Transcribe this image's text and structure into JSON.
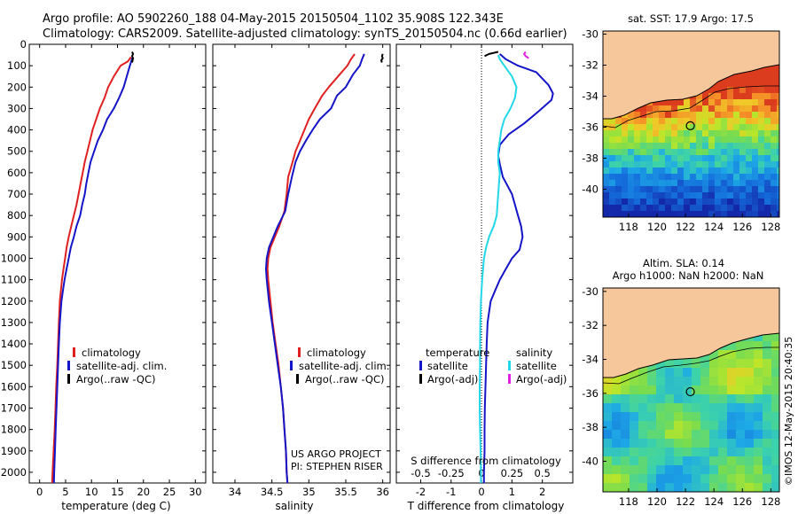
{
  "header": {
    "line1": "Argo profile: AO 5902260_188 04-May-2015 20150504_1102 35.908S 122.343E",
    "line2": "Climatology: CARS2009. Satellite-adjusted climatology: synTS_20150504.nc (0.66d earlier)"
  },
  "side_text": "©IMOS 12-May-2015 20:40:35",
  "colors": {
    "red": "#e02020",
    "blue": "#1414c8",
    "black": "#000000",
    "cyan": "#22d8e8",
    "magenta": "#e020e0",
    "land": "#f7c79c"
  },
  "chart_data": [
    {
      "id": "temperature",
      "type": "line",
      "xlabel": "temperature (deg C)",
      "xlim": [
        -2,
        32
      ],
      "xticks": [
        0,
        5,
        10,
        15,
        20,
        25,
        30
      ],
      "ylim": [
        0,
        2050
      ],
      "yticks": [
        0,
        100,
        200,
        300,
        400,
        500,
        600,
        700,
        800,
        900,
        1000,
        1100,
        1200,
        1300,
        1400,
        1500,
        1600,
        1700,
        1800,
        1900,
        2000
      ],
      "legend": [
        "climatology",
        "satellite-adj. clim.",
        "Argo(..raw -QC)"
      ],
      "series": [
        {
          "name": "climatology",
          "color": "#e02020",
          "points": [
            [
              17.6,
              60
            ],
            [
              17.0,
              80
            ],
            [
              15.6,
              100
            ],
            [
              14.3,
              150
            ],
            [
              13.2,
              200
            ],
            [
              12.5,
              250
            ],
            [
              11.6,
              300
            ],
            [
              10.9,
              350
            ],
            [
              10.2,
              400
            ],
            [
              9.7,
              450
            ],
            [
              9.2,
              500
            ],
            [
              8.7,
              550
            ],
            [
              8.3,
              600
            ],
            [
              7.9,
              650
            ],
            [
              7.5,
              700
            ],
            [
              7.1,
              750
            ],
            [
              6.6,
              800
            ],
            [
              6.1,
              850
            ],
            [
              5.6,
              900
            ],
            [
              5.2,
              950
            ],
            [
              4.9,
              1000
            ],
            [
              4.6,
              1050
            ],
            [
              4.3,
              1100
            ],
            [
              4.1,
              1150
            ],
            [
              3.9,
              1200
            ],
            [
              3.7,
              1300
            ],
            [
              3.55,
              1400
            ],
            [
              3.4,
              1500
            ],
            [
              3.2,
              1600
            ],
            [
              3.05,
              1700
            ],
            [
              2.9,
              1800
            ],
            [
              2.7,
              1900
            ],
            [
              2.5,
              2000
            ],
            [
              2.4,
              2050
            ]
          ]
        },
        {
          "name": "satellite-adj. clim.",
          "color": "#1414c8",
          "points": [
            [
              17.9,
              60
            ],
            [
              17.4,
              100
            ],
            [
              16.8,
              150
            ],
            [
              16.2,
              200
            ],
            [
              15.3,
              250
            ],
            [
              14.3,
              300
            ],
            [
              13.0,
              350
            ],
            [
              12.2,
              400
            ],
            [
              11.2,
              450
            ],
            [
              10.5,
              500
            ],
            [
              9.8,
              550
            ],
            [
              9.4,
              600
            ],
            [
              9.0,
              650
            ],
            [
              8.7,
              700
            ],
            [
              8.2,
              750
            ],
            [
              7.8,
              800
            ],
            [
              7.1,
              850
            ],
            [
              6.6,
              900
            ],
            [
              6.0,
              950
            ],
            [
              5.6,
              1000
            ],
            [
              5.2,
              1050
            ],
            [
              4.8,
              1100
            ],
            [
              4.5,
              1150
            ],
            [
              4.2,
              1200
            ],
            [
              3.9,
              1300
            ],
            [
              3.7,
              1400
            ],
            [
              3.55,
              1500
            ],
            [
              3.4,
              1600
            ],
            [
              3.25,
              1700
            ],
            [
              3.1,
              1800
            ],
            [
              2.95,
              1900
            ],
            [
              2.8,
              2000
            ],
            [
              2.75,
              2050
            ]
          ]
        },
        {
          "name": "Argo(..raw -QC)",
          "color": "#000000",
          "points": [
            [
              17.8,
              35
            ],
            [
              18.0,
              45
            ],
            [
              17.8,
              55
            ],
            [
              18.0,
              65
            ],
            [
              17.9,
              75
            ],
            [
              17.8,
              85
            ]
          ]
        }
      ]
    },
    {
      "id": "salinity",
      "type": "line",
      "xlabel": "salinity",
      "xlim": [
        33.7,
        36.1
      ],
      "xticks": [
        34,
        34.5,
        35,
        35.5,
        36
      ],
      "ylim": [
        0,
        2050
      ],
      "legend": [
        "climatology",
        "satellite-adj. clim.",
        "Argo(..raw -QC)"
      ],
      "annotation": [
        "US ARGO PROJECT",
        "PI: STEPHEN RISER"
      ],
      "series": [
        {
          "name": "climatology",
          "color": "#e02020",
          "points": [
            [
              35.62,
              45
            ],
            [
              35.57,
              70
            ],
            [
              35.52,
              100
            ],
            [
              35.42,
              140
            ],
            [
              35.27,
              200
            ],
            [
              35.18,
              240
            ],
            [
              35.08,
              300
            ],
            [
              35.0,
              350
            ],
            [
              34.94,
              400
            ],
            [
              34.88,
              450
            ],
            [
              34.82,
              500
            ],
            [
              34.78,
              550
            ],
            [
              34.72,
              620
            ],
            [
              34.7,
              700
            ],
            [
              34.67,
              780
            ],
            [
              34.6,
              850
            ],
            [
              34.54,
              900
            ],
            [
              34.48,
              950
            ],
            [
              34.45,
              1000
            ],
            [
              34.44,
              1050
            ],
            [
              34.45,
              1100
            ],
            [
              34.48,
              1200
            ],
            [
              34.51,
              1300
            ],
            [
              34.55,
              1400
            ],
            [
              34.59,
              1500
            ],
            [
              34.62,
              1600
            ],
            [
              34.65,
              1700
            ],
            [
              34.67,
              1800
            ],
            [
              34.69,
              1900
            ],
            [
              34.7,
              2000
            ],
            [
              34.71,
              2050
            ]
          ]
        },
        {
          "name": "satellite-adj. clim.",
          "color": "#1414c8",
          "points": [
            [
              35.75,
              45
            ],
            [
              35.72,
              70
            ],
            [
              35.69,
              100
            ],
            [
              35.6,
              140
            ],
            [
              35.5,
              200
            ],
            [
              35.38,
              240
            ],
            [
              35.3,
              300
            ],
            [
              35.15,
              350
            ],
            [
              35.05,
              400
            ],
            [
              34.96,
              450
            ],
            [
              34.88,
              500
            ],
            [
              34.82,
              550
            ],
            [
              34.77,
              620
            ],
            [
              34.72,
              700
            ],
            [
              34.68,
              780
            ],
            [
              34.58,
              850
            ],
            [
              34.52,
              900
            ],
            [
              34.46,
              950
            ],
            [
              34.43,
              1000
            ],
            [
              34.42,
              1050
            ],
            [
              34.43,
              1100
            ],
            [
              34.46,
              1200
            ],
            [
              34.5,
              1300
            ],
            [
              34.54,
              1400
            ],
            [
              34.58,
              1500
            ],
            [
              34.62,
              1600
            ],
            [
              34.65,
              1700
            ],
            [
              34.67,
              1800
            ],
            [
              34.69,
              1900
            ],
            [
              34.7,
              2000
            ],
            [
              34.71,
              2050
            ]
          ]
        },
        {
          "name": "Argo(..raw -QC)",
          "color": "#000000",
          "points": [
            [
              36.0,
              45
            ],
            [
              35.99,
              55
            ],
            [
              36.0,
              65
            ],
            [
              35.98,
              75
            ],
            [
              35.99,
              85
            ]
          ]
        }
      ]
    },
    {
      "id": "difference",
      "type": "line",
      "xlabel": "T difference from climatology",
      "xlim": [
        -2.8,
        3.0
      ],
      "xticks": [
        -2,
        -1,
        0,
        1,
        2
      ],
      "top_xlabel": "S difference from climatology",
      "top_xticks": [
        -0.5,
        -0.25,
        0,
        0.25,
        0.5
      ],
      "ylim": [
        0,
        2050
      ],
      "legend_temperature_title": "temperature",
      "legend_salinity_title": "salinity",
      "legend": [
        "satellite",
        "Argo(-adj)",
        "satellite",
        "Argo(-adj)"
      ],
      "series": [
        {
          "name": "satellite",
          "color": "#1414c8",
          "points": [
            [
              0.6,
              45
            ],
            [
              0.8,
              70
            ],
            [
              1.2,
              100
            ],
            [
              1.8,
              130
            ],
            [
              2.2,
              190
            ],
            [
              2.35,
              230
            ],
            [
              2.3,
              260
            ],
            [
              1.9,
              310
            ],
            [
              1.4,
              370
            ],
            [
              0.9,
              420
            ],
            [
              0.6,
              470
            ],
            [
              0.55,
              520
            ],
            [
              0.6,
              560
            ],
            [
              0.7,
              620
            ],
            [
              1.0,
              700
            ],
            [
              1.2,
              800
            ],
            [
              1.3,
              850
            ],
            [
              1.35,
              900
            ],
            [
              1.25,
              960
            ],
            [
              1.0,
              1000
            ],
            [
              0.8,
              1050
            ],
            [
              0.6,
              1100
            ],
            [
              0.45,
              1150
            ],
            [
              0.3,
              1200
            ],
            [
              0.2,
              1300
            ],
            [
              0.17,
              1400
            ],
            [
              0.15,
              1500
            ],
            [
              0.13,
              1600
            ],
            [
              0.11,
              1700
            ],
            [
              0.1,
              1800
            ],
            [
              0.1,
              1900
            ],
            [
              0.08,
              2000
            ],
            [
              0.08,
              2050
            ]
          ]
        },
        {
          "name": "Argo(-adj)",
          "color": "#000000",
          "points": [
            [
              0.1,
              55
            ],
            [
              0.25,
              45
            ],
            [
              0.4,
              40
            ],
            [
              0.55,
              35
            ]
          ]
        },
        {
          "name": "satellite",
          "color": "#22d8e8",
          "points": [
            [
              0.55,
              50
            ],
            [
              0.6,
              70
            ],
            [
              0.8,
              110
            ],
            [
              1.0,
              150
            ],
            [
              1.15,
              200
            ],
            [
              1.1,
              250
            ],
            [
              0.95,
              300
            ],
            [
              0.75,
              350
            ],
            [
              0.65,
              400
            ],
            [
              0.6,
              450
            ],
            [
              0.55,
              500
            ],
            [
              0.55,
              550
            ],
            [
              0.6,
              600
            ],
            [
              0.55,
              700
            ],
            [
              0.5,
              800
            ],
            [
              0.4,
              850
            ],
            [
              0.25,
              900
            ],
            [
              0.15,
              950
            ],
            [
              0.08,
              1000
            ],
            [
              0.02,
              1100
            ],
            [
              0.0,
              1150
            ],
            [
              -0.02,
              1200
            ],
            [
              -0.04,
              1300
            ],
            [
              -0.05,
              1400
            ],
            [
              -0.05,
              1500
            ],
            [
              -0.06,
              1600
            ],
            [
              -0.06,
              1700
            ],
            [
              -0.05,
              1800
            ],
            [
              -0.03,
              1900
            ],
            [
              -0.02,
              2000
            ],
            [
              -0.02,
              2050
            ]
          ]
        },
        {
          "name": "Argo(-adj)",
          "color": "#e020e0",
          "points": [
            [
              1.55,
              65
            ],
            [
              1.45,
              55
            ],
            [
              1.4,
              45
            ],
            [
              1.45,
              35
            ]
          ]
        }
      ]
    },
    {
      "id": "sst_map",
      "type": "heatmap",
      "title": "sat. SST: 17.9 Argo: 17.5",
      "xlim": [
        116.2,
        128.6
      ],
      "xticks": [
        118,
        120,
        122,
        124,
        126,
        128
      ],
      "ylim": [
        -41.8,
        -29.8
      ],
      "yticks": [
        -30,
        -32,
        -34,
        -36,
        -38,
        -40
      ],
      "float": [
        122.343,
        -35.908
      ]
    },
    {
      "id": "sla_map",
      "type": "heatmap",
      "title": "Altim. SLA: 0.14",
      "subtitle": "Argo h1000: NaN h2000: NaN",
      "xlim": [
        116.2,
        128.6
      ],
      "xticks": [
        118,
        120,
        122,
        124,
        126,
        128
      ],
      "ylim": [
        -41.8,
        -29.8
      ],
      "yticks": [
        -30,
        -32,
        -34,
        -36,
        -38,
        -40
      ],
      "float": [
        122.343,
        -35.908
      ]
    }
  ]
}
